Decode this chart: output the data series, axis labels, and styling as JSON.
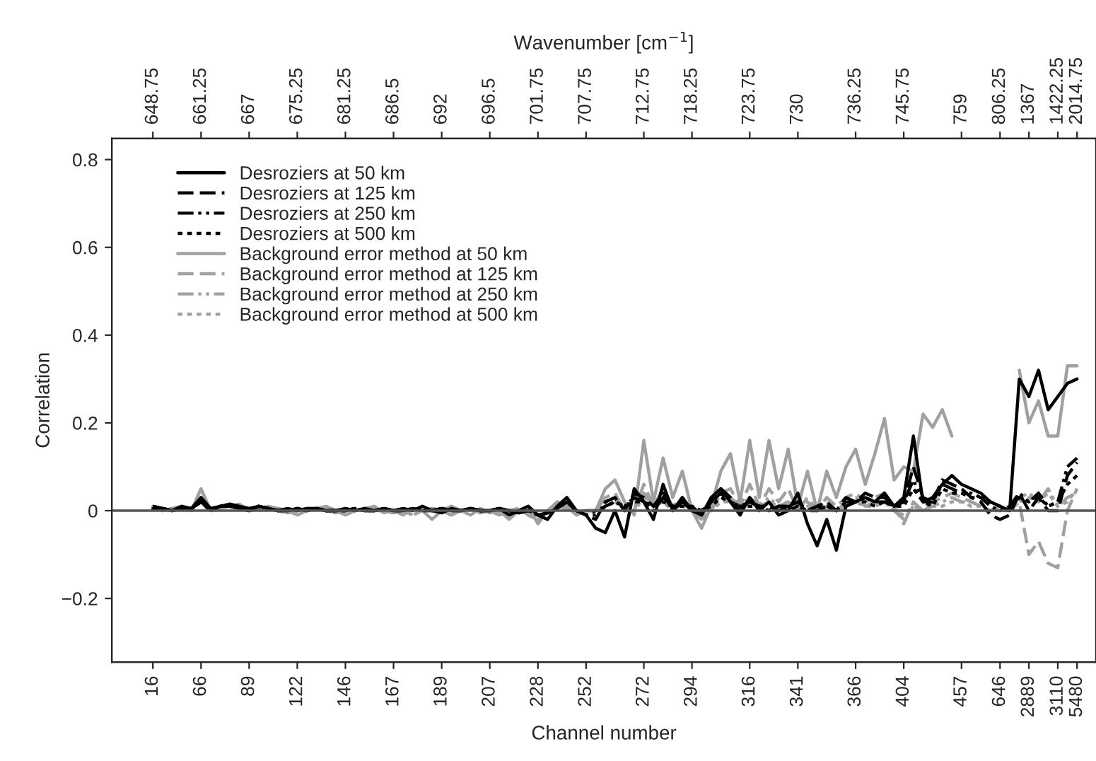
{
  "chart_data": {
    "type": "line",
    "xlabel": "Channel number",
    "ylabel": "Correlation",
    "x2label": "Wavenumber [cm$^{−1}$]",
    "categories": [
      "16",
      null,
      null,
      null,
      null,
      "66",
      null,
      null,
      null,
      null,
      "89",
      null,
      null,
      null,
      null,
      "122",
      null,
      null,
      null,
      null,
      "146",
      null,
      null,
      null,
      null,
      "167",
      null,
      null,
      null,
      null,
      "189",
      null,
      null,
      null,
      null,
      "207",
      null,
      null,
      null,
      null,
      "228",
      null,
      null,
      null,
      null,
      "252",
      null,
      null,
      null,
      null,
      null,
      "272",
      null,
      null,
      null,
      null,
      "294",
      null,
      null,
      null,
      null,
      null,
      "316",
      null,
      null,
      null,
      null,
      "341",
      null,
      null,
      null,
      null,
      null,
      "366",
      null,
      null,
      null,
      null,
      "404",
      null,
      null,
      null,
      null,
      null,
      "457",
      null,
      null,
      null,
      "646",
      null,
      null,
      "2889",
      null,
      null,
      "3110",
      null,
      "5480"
    ],
    "annotations": [
      "648.75",
      "661.25",
      "667",
      "675.25",
      "681.25",
      "686.5",
      "692",
      "696.5",
      "701.75",
      "707.75",
      "712.75",
      "718.25",
      "723.75",
      "730",
      "736.25",
      "745.75",
      "759",
      "806.25",
      "1367",
      "1422.25",
      "2014.75"
    ],
    "ylim": [
      -0.345,
      0.848
    ],
    "yticks": [
      {
        "value": -0.2,
        "label": "−0.2"
      },
      0,
      0.2,
      0.4,
      0.6,
      0.8
    ],
    "grid": false,
    "legend": "top left",
    "marker": "none",
    "ref_lines": [
      {
        "axis": "y",
        "value": 0,
        "color": "#555555",
        "line_style": "solid"
      }
    ],
    "series": [
      {
        "name": "Desroziers at 50 km",
        "color": "#000000",
        "line_style": "solid",
        "values": [
          0.005,
          0.005,
          0.0,
          0.01,
          0.005,
          0.03,
          0.005,
          0.01,
          0.015,
          0.01,
          0.005,
          0.01,
          0.005,
          0.0,
          0.005,
          0.0,
          0.005,
          0.005,
          0.0,
          0.0,
          0.005,
          0.0,
          0.005,
          0.0,
          0.005,
          0.0,
          0.005,
          0.0,
          0.01,
          0.0,
          -0.005,
          0.005,
          0.0,
          0.005,
          0.0,
          0.0,
          0.005,
          -0.01,
          0.0,
          0.01,
          -0.01,
          -0.02,
          0.01,
          0.03,
          0.0,
          -0.01,
          -0.04,
          -0.05,
          0.0,
          -0.06,
          0.05,
          0.02,
          -0.02,
          0.06,
          0.0,
          0.03,
          0.0,
          -0.01,
          0.03,
          0.05,
          0.02,
          -0.01,
          0.03,
          0.0,
          0.02,
          -0.01,
          0.0,
          0.04,
          -0.03,
          -0.08,
          -0.02,
          -0.09,
          0.01,
          0.02,
          0.03,
          0.02,
          0.04,
          0.01,
          0.03,
          0.17,
          0.02,
          0.03,
          0.06,
          0.08,
          0.06,
          0.05,
          0.04,
          0.02,
          0.01,
          0.0,
          0.3,
          0.26,
          0.32,
          0.23,
          0.26,
          0.29,
          0.3
        ]
      },
      {
        "name": "Desroziers at 125 km",
        "color": "#000000",
        "line_style": "dashed",
        "values": [
          0.01,
          0.005,
          0.0,
          0.005,
          0.005,
          0.02,
          0.0,
          0.01,
          0.01,
          0.005,
          0.0,
          0.01,
          0.005,
          0.0,
          0.0,
          0.005,
          0.0,
          0.005,
          0.0,
          0.0,
          0.0,
          0.005,
          0.0,
          0.0,
          0.005,
          0.0,
          0.0,
          0.005,
          0.0,
          0.0,
          0.005,
          0.0,
          0.0,
          0.005,
          0.0,
          0.0,
          0.005,
          0.0,
          -0.005,
          0.0,
          -0.01,
          -0.005,
          0.005,
          0.02,
          0.0,
          -0.01,
          -0.02,
          0.02,
          0.03,
          0.0,
          0.04,
          0.03,
          0.01,
          0.04,
          0.0,
          0.02,
          0.01,
          -0.01,
          0.02,
          0.05,
          0.03,
          0.0,
          0.02,
          0.01,
          0.01,
          0.0,
          0.01,
          0.02,
          0.0,
          0.01,
          0.02,
          0.0,
          0.03,
          0.02,
          0.04,
          0.03,
          0.03,
          0.01,
          0.02,
          0.1,
          0.03,
          0.02,
          0.07,
          0.06,
          0.05,
          0.03,
          0.02,
          -0.01,
          -0.02,
          -0.01,
          0.04,
          0.0,
          0.03,
          0.0,
          0.0,
          0.08,
          0.11
        ]
      },
      {
        "name": "Desroziers at 250 km",
        "color": "#000000",
        "line_style": "dashdot",
        "values": [
          0.01,
          0.005,
          0.0,
          0.005,
          0.005,
          0.02,
          0.0,
          0.01,
          0.01,
          0.005,
          0.0,
          0.01,
          0.005,
          0.0,
          0.0,
          0.005,
          0.0,
          0.005,
          0.0,
          0.0,
          0.0,
          0.005,
          0.0,
          0.0,
          0.005,
          0.0,
          0.0,
          0.005,
          0.0,
          0.0,
          0.005,
          0.0,
          0.0,
          0.005,
          0.0,
          0.0,
          0.005,
          0.0,
          -0.005,
          0.0,
          -0.01,
          -0.005,
          0.005,
          0.02,
          0.0,
          -0.01,
          -0.01,
          0.01,
          0.02,
          0.01,
          0.03,
          0.02,
          0.0,
          0.03,
          0.01,
          0.02,
          0.0,
          0.0,
          0.02,
          0.04,
          0.02,
          0.01,
          0.02,
          0.01,
          0.0,
          0.01,
          0.01,
          0.01,
          0.0,
          0.0,
          0.01,
          0.0,
          0.02,
          0.02,
          0.03,
          0.02,
          0.02,
          0.01,
          0.02,
          0.07,
          0.02,
          0.02,
          0.06,
          0.05,
          0.04,
          0.04,
          0.03,
          0.01,
          0.0,
          0.01,
          0.04,
          0.02,
          0.04,
          0.01,
          0.02,
          0.1,
          0.12
        ]
      },
      {
        "name": "Desroziers at 500 km",
        "color": "#000000",
        "line_style": "dotted",
        "values": [
          0.01,
          0.005,
          0.0,
          0.005,
          0.005,
          0.02,
          0.0,
          0.01,
          0.01,
          0.005,
          0.0,
          0.01,
          0.005,
          0.0,
          0.0,
          0.005,
          0.0,
          0.005,
          0.0,
          0.0,
          0.0,
          0.005,
          0.0,
          0.0,
          0.005,
          0.0,
          0.0,
          0.005,
          0.0,
          0.0,
          0.005,
          0.0,
          0.0,
          0.005,
          0.0,
          0.0,
          0.005,
          0.0,
          -0.005,
          0.0,
          -0.01,
          -0.005,
          0.005,
          0.02,
          0.0,
          -0.01,
          0.0,
          0.01,
          0.02,
          0.01,
          0.02,
          0.02,
          0.01,
          0.02,
          0.01,
          0.01,
          0.01,
          0.0,
          0.01,
          0.03,
          0.02,
          0.01,
          0.01,
          0.01,
          0.0,
          0.01,
          0.0,
          0.01,
          0.0,
          0.01,
          0.01,
          0.0,
          0.01,
          0.02,
          0.02,
          0.01,
          0.02,
          0.01,
          0.01,
          0.05,
          0.02,
          0.01,
          0.05,
          0.04,
          0.04,
          0.03,
          0.03,
          0.02,
          0.01,
          0.0,
          0.03,
          0.02,
          0.03,
          0.01,
          0.02,
          0.06,
          0.08
        ]
      },
      {
        "name": "Background error method at 50 km",
        "color": "#a0a0a0",
        "line_style": "solid",
        "values": [
          0.01,
          0.0,
          0.005,
          0.01,
          0.0,
          0.05,
          0.0,
          0.005,
          0.01,
          0.015,
          0.0,
          0.005,
          0.01,
          0.005,
          0.0,
          -0.01,
          0.0,
          0.005,
          0.01,
          0.0,
          -0.01,
          0.0,
          0.005,
          0.01,
          -0.005,
          0.0,
          -0.01,
          0.005,
          0.0,
          -0.02,
          0.0,
          0.01,
          0.0,
          -0.01,
          0.005,
          -0.005,
          0.0,
          -0.02,
          0.0,
          0.01,
          -0.03,
          0.0,
          0.02,
          0.01,
          -0.01,
          0.0,
          0.0,
          0.05,
          0.07,
          0.02,
          -0.01,
          0.16,
          0.02,
          0.12,
          0.03,
          0.09,
          0.0,
          -0.04,
          0.01,
          0.09,
          0.13,
          0.02,
          0.16,
          0.03,
          0.16,
          0.05,
          0.14,
          0.01,
          0.09,
          0.0,
          0.09,
          0.03,
          0.1,
          0.14,
          0.06,
          0.13,
          0.21,
          0.07,
          0.1,
          0.09,
          0.22,
          0.19,
          0.23,
          0.17,
          null,
          null,
          null,
          null,
          null,
          null,
          0.32,
          0.2,
          0.25,
          0.17,
          0.17,
          0.33,
          0.33
        ]
      },
      {
        "name": "Background error method at 125 km",
        "color": "#a0a0a0",
        "line_style": "dashed",
        "values": [
          0.01,
          0.0,
          0.005,
          0.005,
          0.0,
          0.03,
          0.0,
          0.005,
          0.01,
          0.01,
          0.0,
          0.005,
          0.005,
          0.0,
          -0.005,
          0.0,
          0.005,
          0.005,
          0.0,
          -0.005,
          0.0,
          0.0,
          0.005,
          0.0,
          0.0,
          -0.005,
          0.0,
          -0.01,
          0.0,
          0.005,
          0.0,
          -0.01,
          0.0,
          0.005,
          -0.005,
          0.0,
          -0.01,
          0.0,
          0.005,
          -0.01,
          -0.02,
          0.0,
          0.01,
          0.005,
          -0.005,
          0.0,
          0.0,
          0.03,
          0.04,
          0.0,
          0.0,
          0.06,
          0.01,
          0.05,
          0.01,
          0.03,
          0.0,
          -0.02,
          0.0,
          0.04,
          0.05,
          0.01,
          0.06,
          0.01,
          0.05,
          0.02,
          0.05,
          0.0,
          0.03,
          0.0,
          0.03,
          0.01,
          0.03,
          0.04,
          0.02,
          0.03,
          0.04,
          0.01,
          -0.03,
          0.02,
          0.0,
          0.02,
          0.03,
          0.04,
          0.03,
          0.02,
          0.01,
          0.0,
          0.01,
          0.0,
          0.02,
          -0.1,
          -0.07,
          -0.12,
          -0.13,
          0.0,
          0.05
        ]
      },
      {
        "name": "Background error method at 250 km",
        "color": "#a0a0a0",
        "line_style": "dashdot",
        "values": [
          0.01,
          0.0,
          0.005,
          0.005,
          0.0,
          0.03,
          0.0,
          0.005,
          0.01,
          0.01,
          0.0,
          0.005,
          0.005,
          0.0,
          -0.005,
          0.0,
          0.005,
          0.005,
          0.0,
          -0.005,
          0.0,
          0.0,
          0.005,
          0.0,
          0.0,
          -0.005,
          0.0,
          -0.01,
          0.0,
          0.005,
          0.0,
          -0.01,
          0.0,
          0.005,
          -0.005,
          0.0,
          -0.01,
          0.0,
          0.005,
          -0.01,
          -0.02,
          0.0,
          0.01,
          0.005,
          -0.005,
          0.0,
          0.0,
          0.02,
          0.03,
          0.0,
          0.0,
          0.04,
          0.01,
          0.03,
          0.01,
          0.02,
          0.0,
          -0.01,
          0.0,
          0.02,
          0.03,
          0.01,
          0.03,
          0.01,
          0.03,
          0.01,
          0.02,
          0.0,
          0.02,
          0.0,
          0.02,
          0.0,
          0.02,
          0.03,
          0.01,
          0.02,
          0.02,
          0.0,
          -0.02,
          0.01,
          0.0,
          0.01,
          0.02,
          0.03,
          0.02,
          0.02,
          0.01,
          0.0,
          0.01,
          0.0,
          0.03,
          0.04,
          0.02,
          0.05,
          0.01,
          0.03,
          0.04
        ]
      },
      {
        "name": "Background error method at 500 km",
        "color": "#a0a0a0",
        "line_style": "dotted",
        "values": [
          0.01,
          0.0,
          0.005,
          0.005,
          0.0,
          0.03,
          0.0,
          0.005,
          0.01,
          0.01,
          0.0,
          0.005,
          0.005,
          0.0,
          -0.005,
          0.0,
          0.005,
          0.005,
          0.0,
          -0.005,
          0.0,
          0.0,
          0.005,
          0.0,
          0.0,
          -0.005,
          0.0,
          -0.01,
          0.0,
          0.005,
          0.0,
          -0.01,
          0.0,
          0.005,
          -0.005,
          0.0,
          -0.01,
          0.0,
          0.005,
          -0.01,
          -0.02,
          0.0,
          0.01,
          0.005,
          -0.005,
          0.0,
          0.0,
          0.01,
          0.02,
          0.0,
          0.0,
          0.03,
          0.01,
          0.02,
          0.0,
          0.01,
          0.0,
          0.0,
          0.0,
          0.02,
          0.02,
          0.0,
          0.02,
          0.01,
          0.02,
          0.01,
          0.01,
          0.0,
          0.01,
          0.0,
          0.01,
          0.0,
          0.01,
          0.02,
          0.01,
          0.01,
          0.02,
          0.0,
          -0.01,
          0.01,
          0.0,
          0.01,
          0.01,
          0.02,
          0.02,
          0.01,
          0.01,
          0.0,
          0.0,
          0.0,
          0.02,
          0.03,
          0.02,
          0.04,
          0.01,
          0.02,
          0.05
        ]
      }
    ]
  }
}
